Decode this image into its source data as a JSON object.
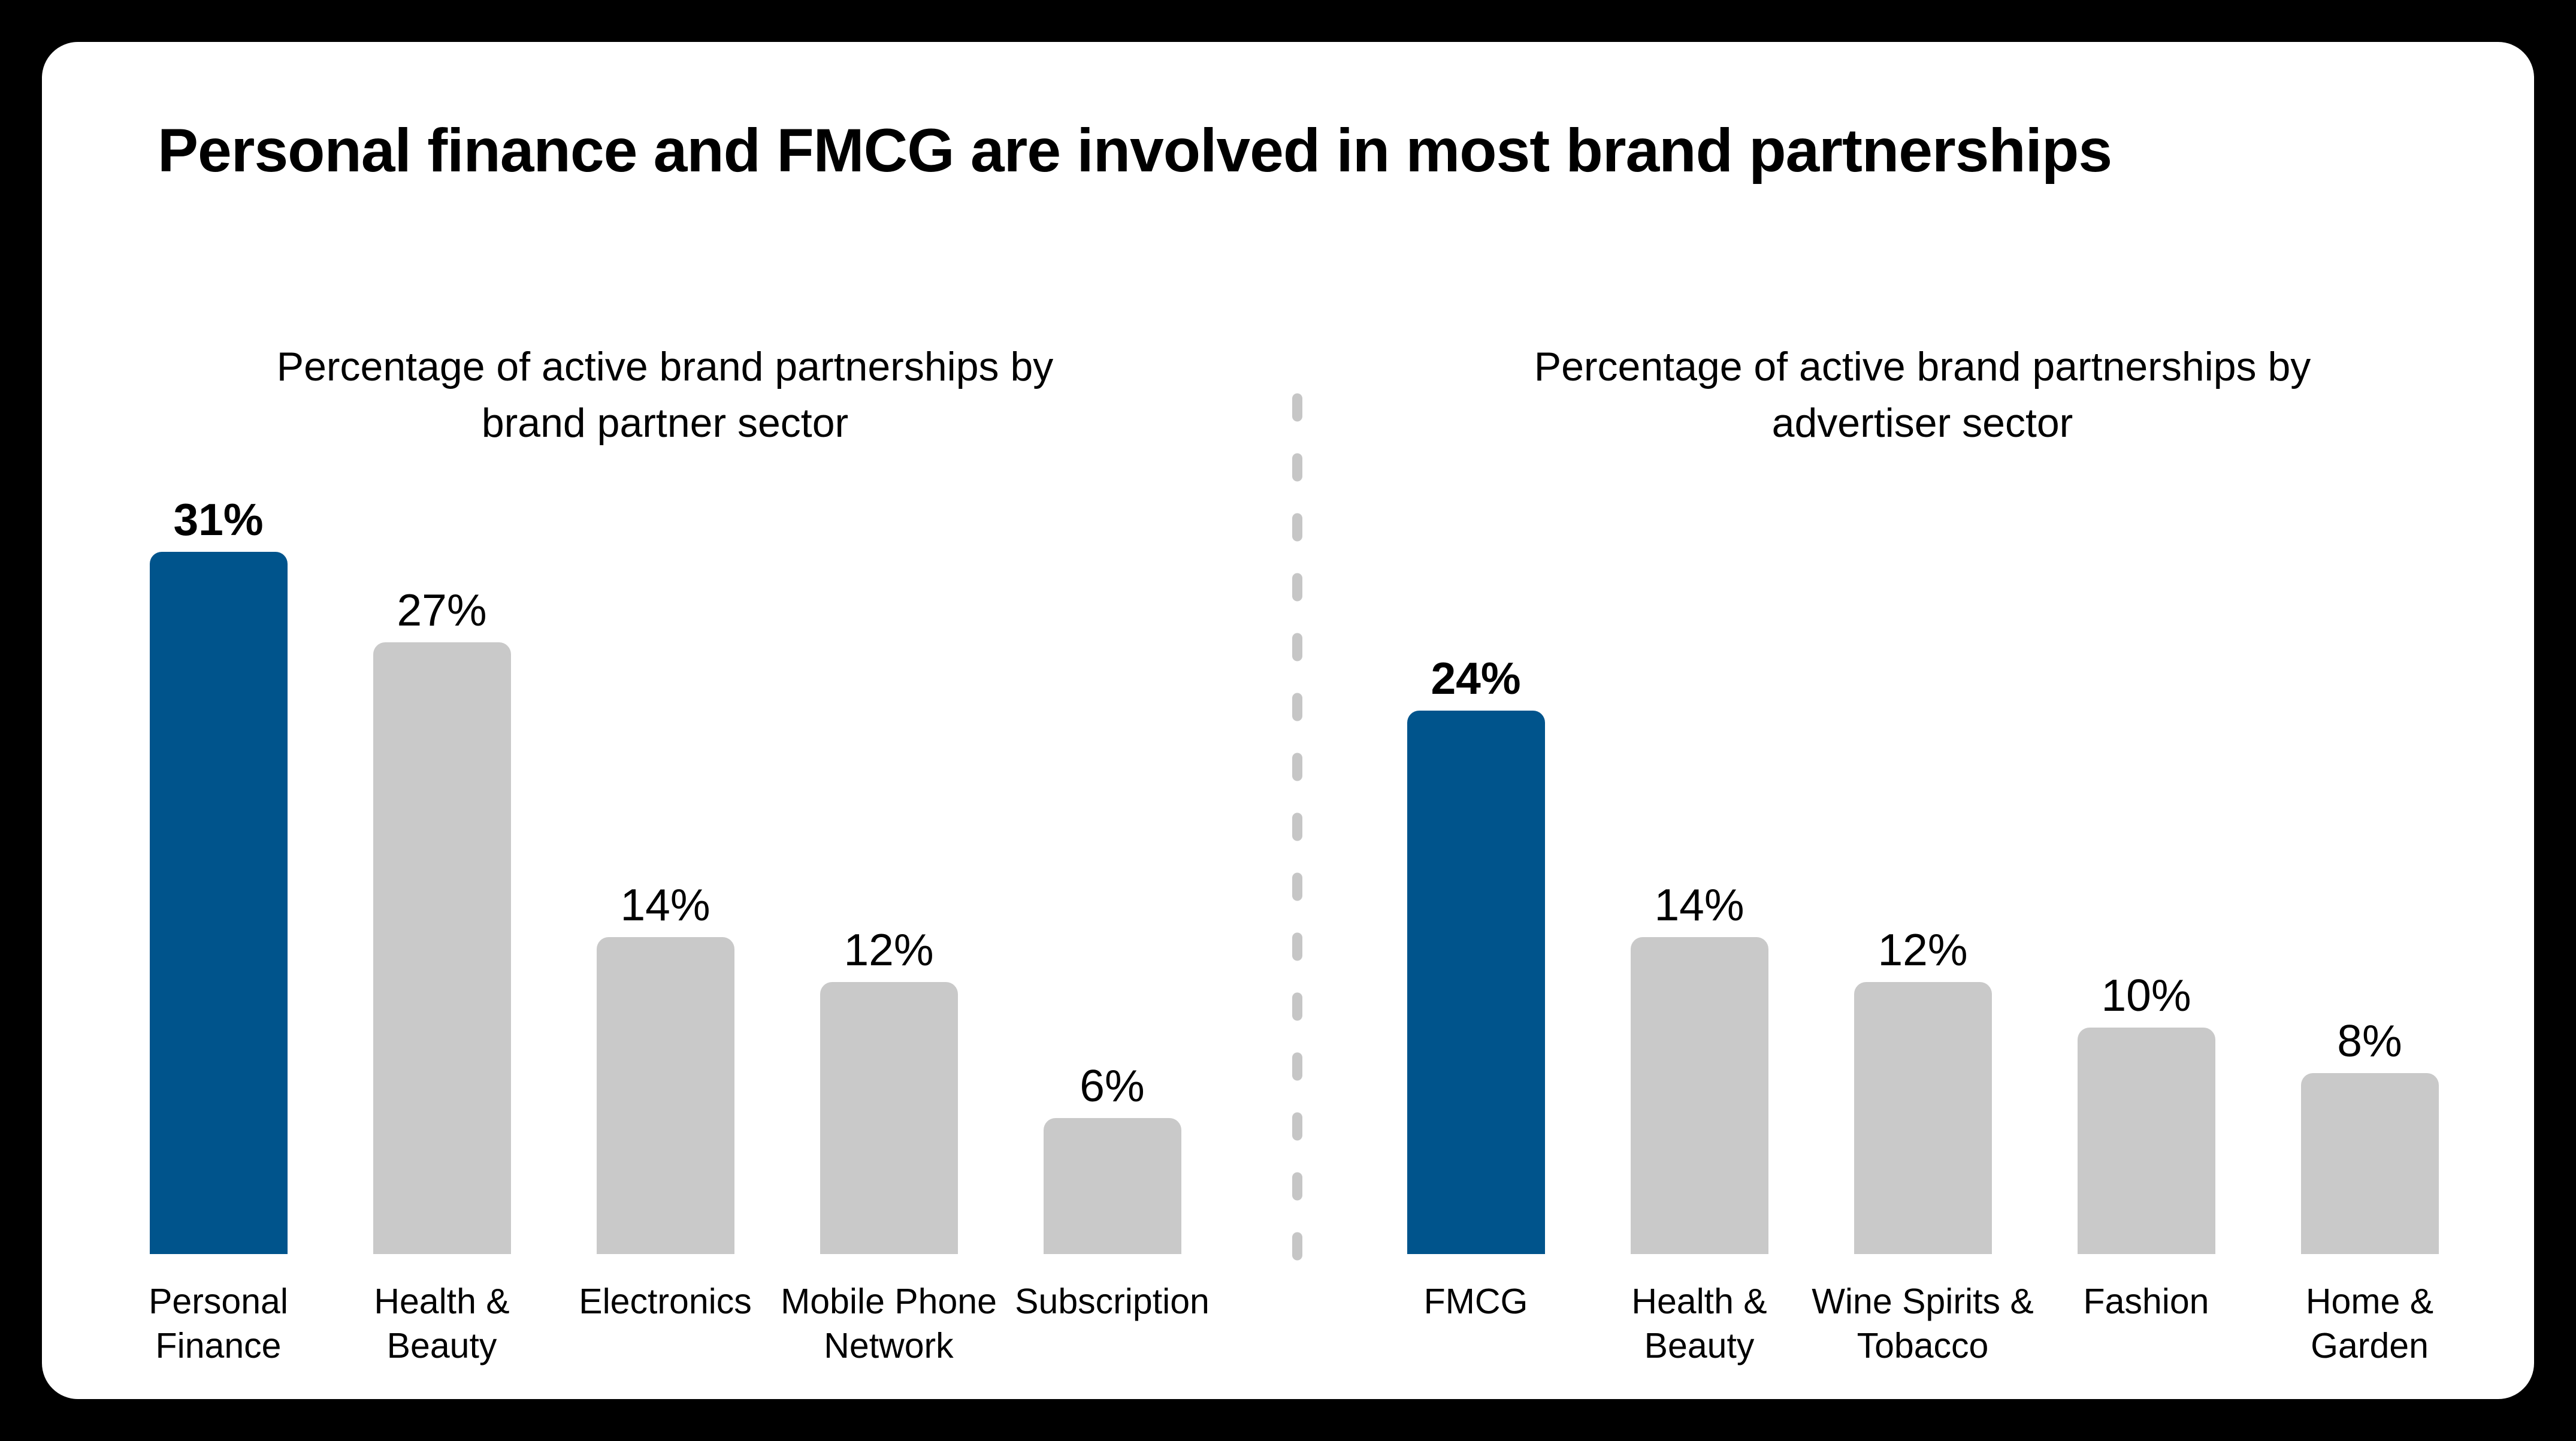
{
  "page": {
    "title": "Personal finance and FMCG are involved in most brand partnerships",
    "background_color": "#000000",
    "card_color": "#FFFFFF",
    "text_color": "#000000"
  },
  "divider": {
    "orientation": "vertical",
    "style": "dashed",
    "color": "#C6C6C6"
  },
  "chart_data": [
    {
      "type": "bar",
      "title": "Percentage of active brand partnerships by brand partner sector",
      "title_lines": [
        "Percentage of active brand partnerships by",
        "brand partner sector"
      ],
      "categories": [
        "Personal Finance",
        "Health & Beauty",
        "Electronics",
        "Mobile Phone Network",
        "Subscription"
      ],
      "category_lines": [
        [
          "Personal",
          "Finance"
        ],
        [
          "Health &",
          "Beauty"
        ],
        [
          "Electronics"
        ],
        [
          "Mobile Phone",
          "Network"
        ],
        [
          "Subscription"
        ]
      ],
      "values": [
        31,
        27,
        14,
        12,
        6
      ],
      "value_labels": [
        "31%",
        "27%",
        "14%",
        "12%",
        "6%"
      ],
      "unit": "%",
      "highlighted_index": 0,
      "highlight_color": "#00548C",
      "bar_color": "#C9C9C9",
      "ylim": [
        0,
        35
      ],
      "grid": false,
      "value_label_position": "above",
      "legend": "none"
    },
    {
      "type": "bar",
      "title": "Percentage of active brand partnerships by advertiser sector",
      "title_lines": [
        "Percentage of active brand partnerships by",
        "advertiser sector"
      ],
      "categories": [
        "FMCG",
        "Health & Beauty",
        "Wine Spirits & Tobacco",
        "Fashion",
        "Home & Garden"
      ],
      "category_lines": [
        [
          "FMCG"
        ],
        [
          "Health &",
          "Beauty"
        ],
        [
          "Wine Spirits &",
          "Tobacco"
        ],
        [
          "Fashion"
        ],
        [
          "Home &",
          "Garden"
        ]
      ],
      "values": [
        24,
        14,
        12,
        10,
        8
      ],
      "value_labels": [
        "24%",
        "14%",
        "12%",
        "10%",
        "8%"
      ],
      "unit": "%",
      "highlighted_index": 0,
      "highlight_color": "#00548C",
      "bar_color": "#C9C9C9",
      "ylim": [
        0,
        35
      ],
      "grid": false,
      "value_label_position": "above",
      "legend": "none"
    }
  ]
}
